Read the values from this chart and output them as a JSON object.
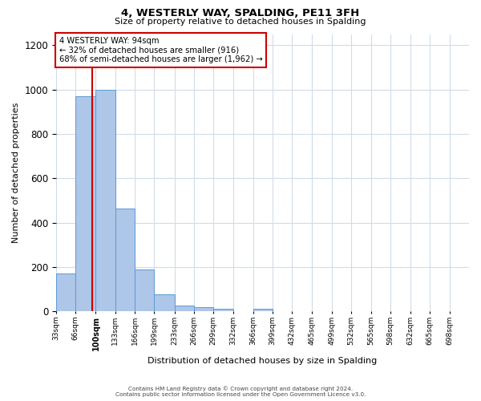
{
  "title": "4, WESTERLY WAY, SPALDING, PE11 3FH",
  "subtitle": "Size of property relative to detached houses in Spalding",
  "xlabel": "Distribution of detached houses by size in Spalding",
  "ylabel": "Number of detached properties",
  "bin_labels": [
    "33sqm",
    "66sqm",
    "100sqm",
    "133sqm",
    "166sqm",
    "199sqm",
    "233sqm",
    "266sqm",
    "299sqm",
    "332sqm",
    "366sqm",
    "399sqm",
    "432sqm",
    "465sqm",
    "499sqm",
    "532sqm",
    "565sqm",
    "598sqm",
    "632sqm",
    "665sqm",
    "698sqm"
  ],
  "bin_edges": [
    33,
    66,
    100,
    133,
    166,
    199,
    233,
    266,
    299,
    332,
    366,
    399,
    432,
    465,
    499,
    532,
    565,
    598,
    632,
    665,
    698,
    731
  ],
  "bar_heights": [
    170,
    970,
    1000,
    465,
    190,
    75,
    25,
    18,
    12,
    0,
    12,
    0,
    0,
    0,
    0,
    0,
    0,
    0,
    0,
    0,
    0
  ],
  "bar_color": "#aec6e8",
  "bar_edge_color": "#5b9bd5",
  "property_size": 94,
  "vline_color": "#cc0000",
  "annotation_text": "4 WESTERLY WAY: 94sqm\n← 32% of detached houses are smaller (916)\n68% of semi-detached houses are larger (1,962) →",
  "annotation_box_color": "#ffffff",
  "annotation_box_edge": "#cc0000",
  "ylim": [
    0,
    1250
  ],
  "yticks": [
    0,
    200,
    400,
    600,
    800,
    1000,
    1200
  ],
  "footer_line1": "Contains HM Land Registry data © Crown copyright and database right 2024.",
  "footer_line2": "Contains public sector information licensed under the Open Government Licence v3.0.",
  "bg_color": "#ffffff",
  "grid_color": "#d0dce8"
}
